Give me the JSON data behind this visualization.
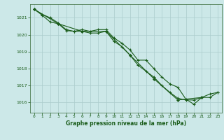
{
  "title": "Graphe pression niveau de la mer (hPa)",
  "background_color": "#cce8e8",
  "grid_color": "#aacccc",
  "line_color": "#1a5c1a",
  "xlim": [
    -0.5,
    23.5
  ],
  "ylim": [
    1015.4,
    1021.8
  ],
  "xticks": [
    0,
    1,
    2,
    3,
    4,
    5,
    6,
    7,
    8,
    9,
    10,
    11,
    12,
    13,
    14,
    15,
    16,
    17,
    18,
    19,
    20,
    21,
    22,
    23
  ],
  "yticks": [
    1016,
    1017,
    1018,
    1019,
    1020,
    1021
  ],
  "series1_x": [
    0,
    1,
    2,
    3,
    4,
    5,
    6,
    7,
    8,
    9,
    10,
    11,
    12,
    13,
    14,
    15,
    16,
    17,
    18,
    19,
    20,
    21,
    22,
    23
  ],
  "series1_y": [
    1021.5,
    1021.15,
    1020.75,
    1020.65,
    1020.25,
    1020.2,
    1020.2,
    1020.1,
    1020.1,
    1020.2,
    1019.6,
    1019.3,
    1018.8,
    1018.2,
    1017.85,
    1017.5,
    1017.0,
    1016.6,
    1016.25,
    1016.15,
    1016.15,
    1016.3,
    1016.5,
    1016.6
  ],
  "series2_x": [
    0,
    1,
    2,
    3,
    4,
    5,
    6,
    7,
    8,
    9,
    10,
    11,
    12,
    13,
    14,
    15,
    16,
    17,
    18,
    19,
    20,
    21,
    22,
    23
  ],
  "series2_y": [
    1021.5,
    1021.2,
    1021.0,
    1020.7,
    1020.3,
    1020.2,
    1020.3,
    1020.2,
    1020.3,
    1020.3,
    1019.8,
    1019.5,
    1019.1,
    1018.5,
    1018.5,
    1018.0,
    1017.5,
    1017.1,
    1016.9,
    1016.2,
    1015.9,
    1016.3,
    1016.3,
    1016.6
  ],
  "series3_x": [
    0,
    3,
    6,
    9,
    12,
    15,
    18,
    21
  ],
  "series3_y": [
    1021.5,
    1020.65,
    1020.2,
    1020.2,
    1018.8,
    1017.4,
    1016.15,
    1016.3
  ],
  "figsize": [
    3.2,
    2.0
  ],
  "dpi": 100
}
